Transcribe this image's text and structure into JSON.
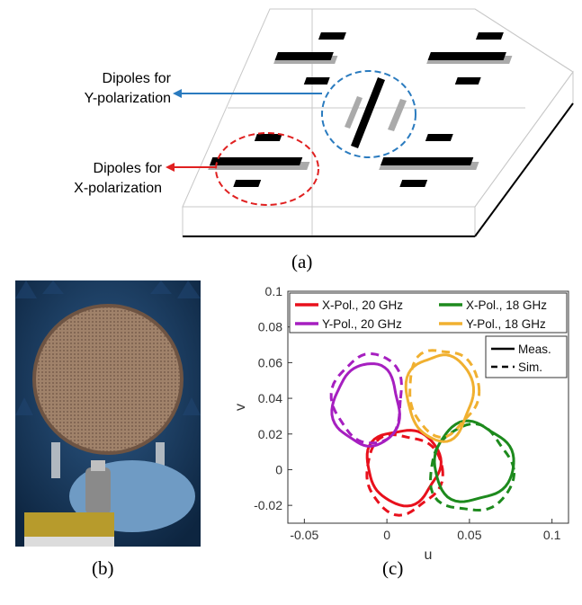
{
  "figure_a": {
    "label_y": [
      "Dipoles for",
      "Y-polarization"
    ],
    "label_x": [
      "Dipoles for",
      "X-polarization"
    ],
    "caption": "(a)",
    "colors": {
      "y_callout": "#2a7bbf",
      "x_callout": "#e02020"
    }
  },
  "figure_b": {
    "caption": "(b)",
    "image_description_icon": "photo-reflectarray-antenna"
  },
  "chart_data": {
    "type": "line",
    "caption": "(c)",
    "xlabel": "u",
    "ylabel": "v",
    "xlim": [
      -0.06,
      0.11
    ],
    "ylim": [
      -0.03,
      0.1
    ],
    "xticks": [
      "-0.05",
      "0",
      "0.05",
      "0.1"
    ],
    "yticks": [
      "0.1",
      "0.08",
      "0.06",
      "0.04",
      "0.02",
      "0",
      "-0.02"
    ],
    "legend_placement": "top",
    "legend": [
      {
        "name": "X-Pol., 20 GHz",
        "color": "#e8101c"
      },
      {
        "name": "X-Pol., 18 GHz",
        "color": "#1d8a1d"
      },
      {
        "name": "Y-Pol., 20 GHz",
        "color": "#a61fc0"
      },
      {
        "name": "Y-Pol., 18 GHz",
        "color": "#f0b030"
      }
    ],
    "style_legend": [
      {
        "name": "Meas.",
        "dash": "solid"
      },
      {
        "name": "Sim.",
        "dash": "dashed"
      }
    ],
    "series": [
      {
        "name": "X-Pol., 20 GHz",
        "color": "#e8101c",
        "center": [
          0.01,
          0.002
        ],
        "radius": [
          0.022,
          0.021
        ],
        "type": "meas"
      },
      {
        "name": "X-Pol., 20 GHz",
        "color": "#e8101c",
        "center": [
          0.01,
          -0.002
        ],
        "radius": [
          0.023,
          0.022
        ],
        "type": "sim"
      },
      {
        "name": "X-Pol., 18 GHz",
        "color": "#1d8a1d",
        "center": [
          0.052,
          0.004
        ],
        "radius": [
          0.024,
          0.022
        ],
        "type": "meas"
      },
      {
        "name": "X-Pol., 18 GHz",
        "color": "#1d8a1d",
        "center": [
          0.051,
          0.0
        ],
        "radius": [
          0.025,
          0.024
        ],
        "type": "sim"
      },
      {
        "name": "Y-Pol., 20 GHz",
        "color": "#a61fc0",
        "center": [
          -0.012,
          0.036
        ],
        "radius": [
          0.02,
          0.023
        ],
        "type": "meas"
      },
      {
        "name": "Y-Pol., 20 GHz",
        "color": "#a61fc0",
        "center": [
          -0.011,
          0.04
        ],
        "radius": [
          0.021,
          0.025
        ],
        "type": "sim"
      },
      {
        "name": "Y-Pol., 18 GHz",
        "color": "#f0b030",
        "center": [
          0.032,
          0.041
        ],
        "radius": [
          0.02,
          0.024
        ],
        "type": "meas"
      },
      {
        "name": "Y-Pol., 18 GHz",
        "color": "#f0b030",
        "center": [
          0.034,
          0.044
        ],
        "radius": [
          0.021,
          0.024
        ],
        "type": "sim"
      }
    ]
  }
}
